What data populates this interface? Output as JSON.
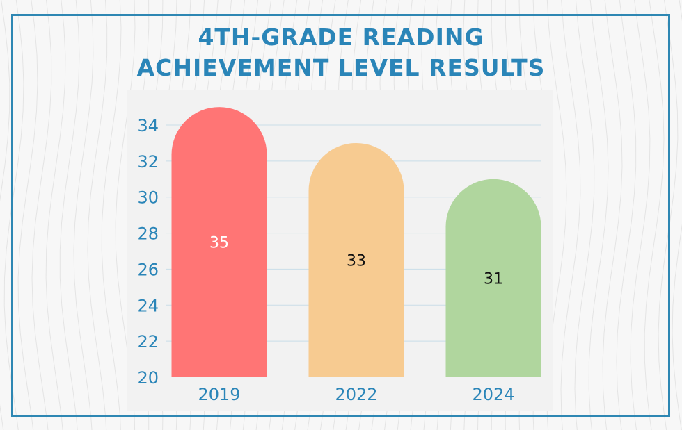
{
  "title": {
    "line1": "4TH-GRADE READING",
    "line2": "ACHIEVEMENT LEVEL RESULTS"
  },
  "colors": {
    "accent": "#2a85b8",
    "frame": "#2e87b3",
    "panel": "#f2f2f2",
    "grid": "#c9dde8",
    "bar_colors": [
      "#ff7575",
      "#f7cb91",
      "#b0d69e"
    ],
    "label_colors": [
      "#ffffff",
      "#111111",
      "#111111"
    ]
  },
  "chart_data": {
    "type": "bar",
    "categories": [
      "2019",
      "2022",
      "2024"
    ],
    "values": [
      35,
      33,
      31
    ],
    "data_labels": [
      "35",
      "33",
      "31"
    ],
    "y_ticks": [
      "20",
      "22",
      "24",
      "26",
      "28",
      "30",
      "32",
      "34"
    ],
    "ylim": [
      20,
      35
    ],
    "grid": true,
    "legend": "none",
    "bar_style": "rounded-top"
  }
}
